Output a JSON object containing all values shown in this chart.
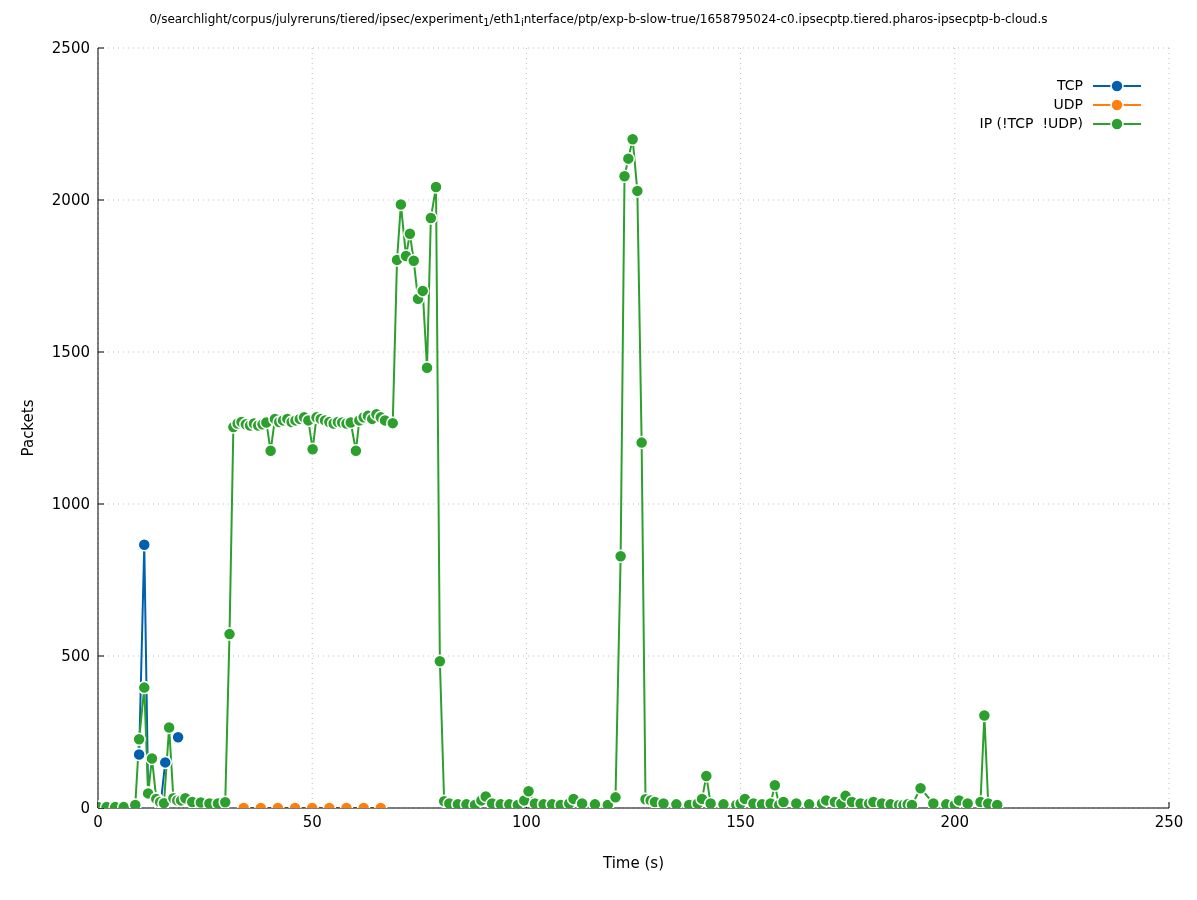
{
  "chart_data": {
    "type": "line",
    "title": "0/searchlight/corpus/julyreruns/tiered/ipsec/experiment$_{1}$/eth1$_{i}$nterface/ptp/exp-b-slow-true/1658795024-c0.ipsecptp.tiered.pharos-ipsecptp-b-cloud.s",
    "xlabel": "Time (s)",
    "ylabel": "Packets",
    "xlim": [
      0,
      250
    ],
    "xticks": [
      0,
      50,
      100,
      150,
      200,
      250
    ],
    "ylim": [
      0,
      2500
    ],
    "yticks": [
      0,
      500,
      1000,
      1500,
      2000,
      2500
    ],
    "grid": true,
    "legend": "top right",
    "marker": "circle",
    "line_style": "solid",
    "series": [
      {
        "name": "TCP",
        "color": "#0060ad",
        "x": [
          9.6,
          10.8,
          11.7,
          12.6,
          13.6,
          14.6,
          15.7,
          16.6,
          17.6,
          18.7
        ],
        "values": [
          176,
          866,
          50,
          null,
          30,
          10,
          150,
          null,
          null,
          233
        ]
      },
      {
        "name": "UDP",
        "color": "#ff7f0e",
        "x": [
          34,
          38,
          42,
          46,
          50,
          54,
          58,
          62,
          66
        ],
        "values": [
          0,
          0,
          0,
          0,
          0,
          0,
          0,
          0,
          0
        ]
      },
      {
        "name": "IP (!TCP  !UDP)",
        "color": "#2ca02c",
        "x": [
          0,
          2,
          4,
          6,
          8.7,
          9.6,
          10.8,
          11.7,
          12.6,
          13.6,
          14.5,
          15.4,
          16.6,
          17.6,
          18.5,
          19.4,
          20.4,
          22,
          24,
          26,
          28,
          29.7,
          30.7,
          31.6,
          32.6,
          33.5,
          34.5,
          35.5,
          36.4,
          37.4,
          38.4,
          39.3,
          40.3,
          41.3,
          42.3,
          43.2,
          44.2,
          45.2,
          46.1,
          47.1,
          48.1,
          49.1,
          50.1,
          51,
          52,
          53,
          54,
          55,
          56,
          57,
          58,
          59,
          60.2,
          61,
          62,
          63,
          64,
          65,
          66,
          67,
          68.8,
          69.8,
          70.7,
          71.9,
          72.8,
          73.7,
          74.7,
          75.8,
          76.8,
          77.7,
          78.9,
          79.8,
          80.8,
          82,
          84,
          86,
          88,
          89.5,
          90.5,
          92,
          94,
          96,
          98,
          99.5,
          100.5,
          102,
          104,
          106,
          108,
          110,
          111,
          113,
          116,
          119,
          120.8,
          122,
          122.9,
          123.8,
          124.8,
          125.9,
          126.9,
          127.8,
          129,
          130,
          132,
          135,
          138,
          140,
          141,
          142,
          143,
          146,
          149,
          150,
          151,
          153,
          155,
          157,
          158,
          159,
          160,
          163,
          166,
          169,
          170,
          172,
          173.5,
          174.5,
          176,
          178,
          180,
          181,
          183,
          185,
          187,
          188,
          189,
          190,
          192,
          195,
          198,
          200,
          201,
          203,
          206,
          206.9,
          207.8,
          209.9
        ],
        "values": [
          3,
          3,
          3,
          3,
          10,
          226,
          396,
          48,
          163,
          30,
          20,
          16,
          265,
          32,
          25,
          25,
          32,
          20,
          18,
          15,
          15,
          19,
          572,
          1253,
          1265,
          1270,
          1262,
          1258,
          1265,
          1258,
          1262,
          1268,
          1175,
          1280,
          1270,
          1275,
          1280,
          1270,
          1275,
          1280,
          1285,
          1275,
          1180,
          1285,
          1280,
          1275,
          1270,
          1265,
          1270,
          1268,
          1265,
          1268,
          1175,
          1275,
          1285,
          1290,
          1280,
          1295,
          1285,
          1275,
          1266,
          1803,
          1985,
          1816,
          1889,
          1800,
          1675,
          1701,
          1448,
          1941,
          2043,
          483,
          22,
          15,
          12,
          12,
          10,
          25,
          38,
          15,
          12,
          12,
          10,
          25,
          55,
          15,
          12,
          12,
          10,
          15,
          30,
          15,
          12,
          10,
          35,
          828,
          2078,
          2136,
          2200,
          2030,
          1202,
          29,
          25,
          20,
          15,
          12,
          10,
          15,
          30,
          105,
          15,
          12,
          10,
          15,
          30,
          15,
          12,
          15,
          75,
          10,
          20,
          15,
          12,
          15,
          25,
          20,
          15,
          40,
          20,
          15,
          15,
          20,
          15,
          12,
          10,
          10,
          12,
          10,
          65,
          15,
          12,
          10,
          25,
          15,
          20,
          304,
          15,
          10
        ]
      }
    ]
  }
}
